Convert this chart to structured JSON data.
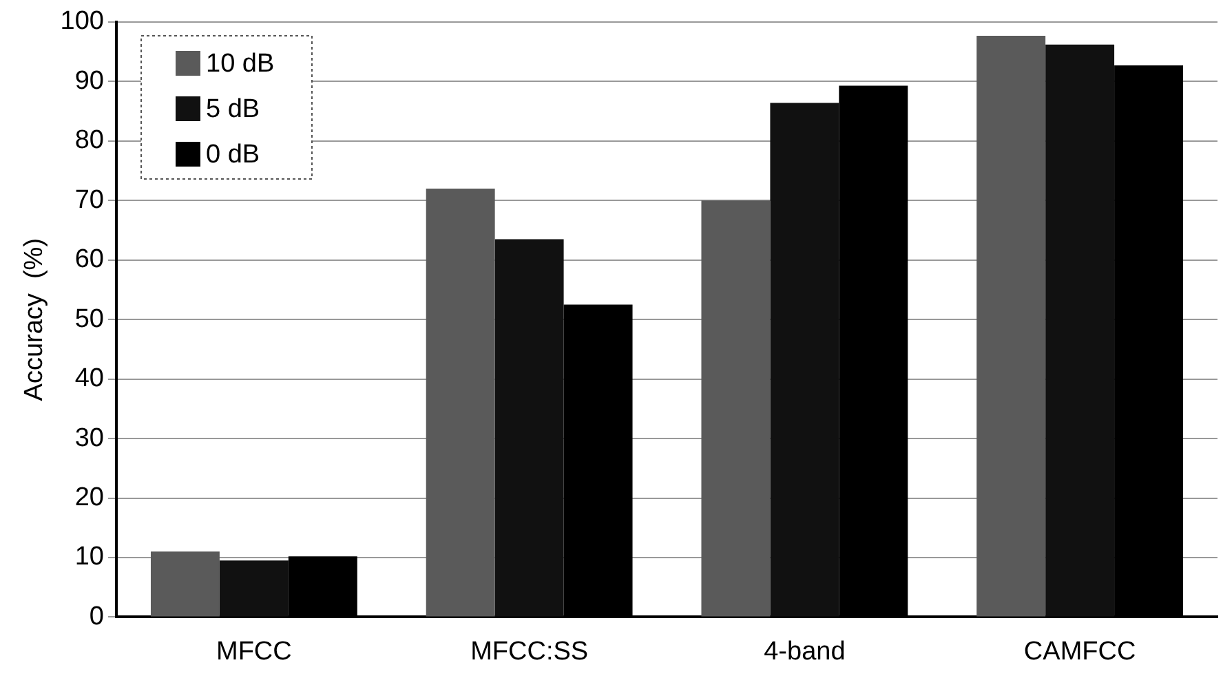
{
  "chart_data": {
    "type": "bar",
    "ylabel": "Accuracy  (%)",
    "categories": [
      "MFCC",
      "MFCC:SS",
      "4-band",
      "CAMFCC"
    ],
    "series": [
      {
        "name": "10 dB",
        "color": "#5a5a5a",
        "values": [
          11,
          72,
          70,
          97.7
        ]
      },
      {
        "name": "5 dB",
        "color": "#111111",
        "values": [
          9.5,
          63.5,
          86.4,
          96.2
        ]
      },
      {
        "name": "0 dB",
        "color": "#000000",
        "values": [
          10.2,
          52.5,
          89.3,
          92.7
        ]
      }
    ],
    "ylim": [
      0,
      100
    ],
    "yticks": [
      0,
      10,
      20,
      30,
      40,
      50,
      60,
      70,
      80,
      90,
      100
    ],
    "grid": "y",
    "legend": "top left"
  }
}
